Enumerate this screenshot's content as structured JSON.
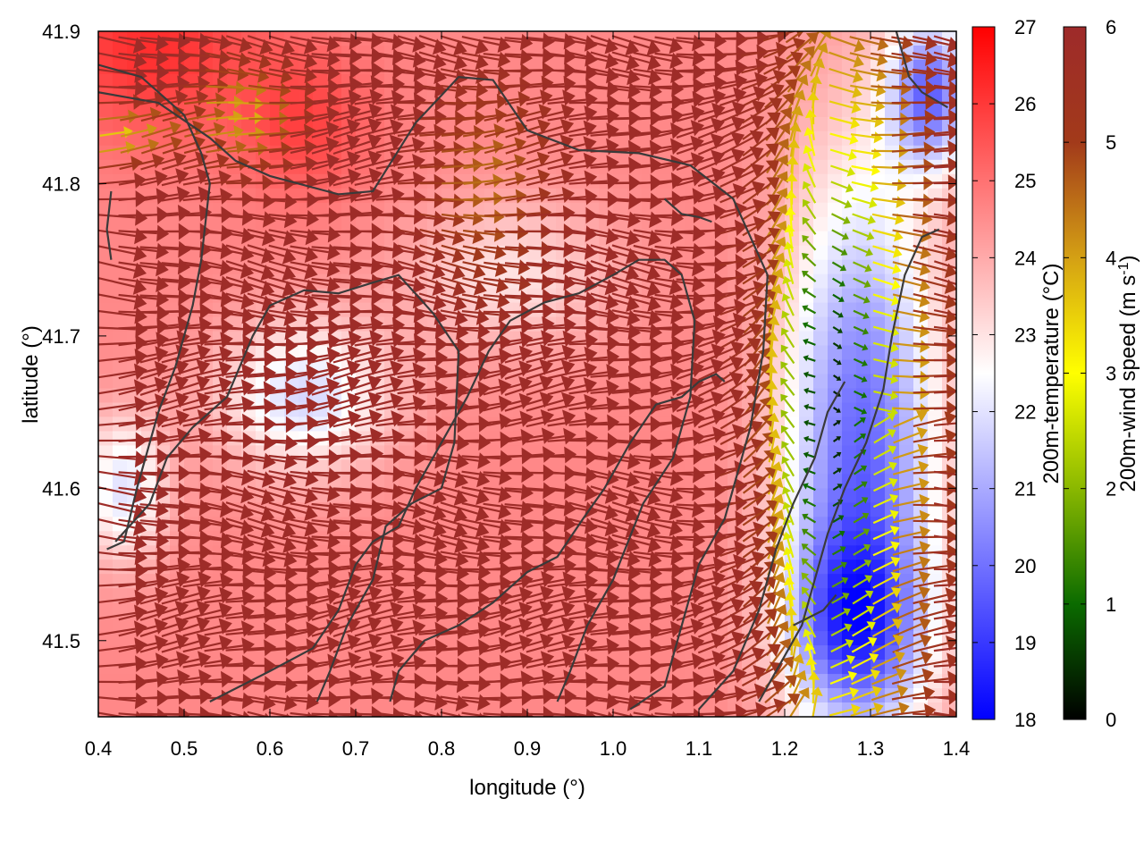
{
  "chart_data": {
    "type": "heatmap",
    "title": "",
    "xlabel": "longitude (°)",
    "ylabel": "latitude (°)",
    "xlim": [
      0.4,
      1.4
    ],
    "ylim": [
      41.45,
      41.9
    ],
    "xticks": [
      "0.4",
      "0.5",
      "0.6",
      "0.7",
      "0.8",
      "0.9",
      "1.0",
      "1.1",
      "1.2",
      "1.3",
      "1.4"
    ],
    "yticks": [
      "41.5",
      "41.6",
      "41.7",
      "41.8",
      "41.9"
    ],
    "grid": false,
    "legend": "none",
    "temperature_colorbar": {
      "label": "200m-temperature (°C)",
      "range": [
        18,
        27
      ],
      "ticks": [
        "18",
        "19",
        "20",
        "21",
        "22",
        "23",
        "24",
        "25",
        "26",
        "27"
      ],
      "colors": [
        "#0000ff",
        "#ffffff",
        "#ff0000"
      ]
    },
    "wind_colorbar": {
      "label_main": "200m-wind speed (m s",
      "label_sup": "-1",
      "label_end": ")",
      "range": [
        0,
        6
      ],
      "ticks": [
        "0",
        "1",
        "2",
        "3",
        "4",
        "5",
        "6"
      ],
      "colors": [
        "#000000",
        "#0b6b00",
        "#8ab800",
        "#ffff00",
        "#d4a014",
        "#a23a1a",
        "#9e2a2a"
      ]
    },
    "temperature_field": {
      "background_c": 24.6,
      "cool_zones": [
        {
          "lon": 1.29,
          "lat": 41.62,
          "rlon": 0.09,
          "rlat": 0.19,
          "delta_c": -4.8
        },
        {
          "lon": 1.37,
          "lat": 41.86,
          "rlon": 0.05,
          "rlat": 0.05,
          "delta_c": -4.5
        },
        {
          "lon": 1.28,
          "lat": 41.51,
          "rlon": 0.08,
          "rlat": 0.06,
          "delta_c": -3.2
        },
        {
          "lon": 0.64,
          "lat": 41.66,
          "rlon": 0.1,
          "rlat": 0.05,
          "delta_c": -2.8
        },
        {
          "lon": 0.43,
          "lat": 41.6,
          "rlon": 0.05,
          "rlat": 0.05,
          "delta_c": -2.6
        },
        {
          "lon": 0.88,
          "lat": 41.74,
          "rlon": 0.12,
          "rlat": 0.05,
          "delta_c": -1.6
        }
      ],
      "warm_zones": [
        {
          "lon": 0.46,
          "lat": 41.89,
          "rlon": 0.12,
          "rlat": 0.06,
          "delta_c": 1.6
        },
        {
          "lon": 0.64,
          "lat": 41.84,
          "rlon": 0.08,
          "rlat": 0.05,
          "delta_c": 1.2
        }
      ]
    },
    "wind_field": {
      "main_flow": {
        "speed_ms": 5.9,
        "direction": "eastward"
      },
      "calm_zones": [
        {
          "lon": 1.255,
          "lat": 41.65,
          "rlon": 0.075,
          "rlat": 0.22,
          "min_speed_ms": 0.3
        },
        {
          "lon": 0.55,
          "lat": 41.845,
          "rlon": 0.05,
          "rlat": 0.035,
          "min_speed_ms": 3.8
        },
        {
          "lon": 0.37,
          "lat": 41.83,
          "rlon": 0.1,
          "rlat": 0.018,
          "min_speed_ms": 3.2
        },
        {
          "lon": 0.83,
          "lat": 41.8,
          "rlon": 0.06,
          "rlat": 0.06,
          "min_speed_ms": 4.5
        }
      ]
    },
    "contours": [
      {
        "name": "contour-1",
        "points": [
          [
            0.4,
            41.86
          ],
          [
            0.47,
            41.853
          ],
          [
            0.53,
            41.83
          ],
          [
            0.56,
            41.815
          ],
          [
            0.6,
            41.805
          ],
          [
            0.68,
            41.793
          ],
          [
            0.72,
            41.795
          ],
          [
            0.77,
            41.84
          ],
          [
            0.82,
            41.87
          ],
          [
            0.86,
            41.868
          ],
          [
            0.9,
            41.835
          ],
          [
            0.96,
            41.822
          ],
          [
            1.03,
            41.82
          ],
          [
            1.09,
            41.812
          ],
          [
            1.14,
            41.79
          ],
          [
            1.18,
            41.74
          ],
          [
            1.175,
            41.69
          ],
          [
            1.16,
            41.64
          ],
          [
            1.13,
            41.58
          ],
          [
            1.1,
            41.55
          ],
          [
            1.06,
            41.47
          ],
          [
            1.02,
            41.455
          ]
        ]
      },
      {
        "name": "contour-2",
        "points": [
          [
            0.4,
            41.878
          ],
          [
            0.45,
            41.87
          ],
          [
            0.5,
            41.845
          ],
          [
            0.52,
            41.82
          ],
          [
            0.53,
            41.8
          ],
          [
            0.52,
            41.75
          ],
          [
            0.51,
            41.72
          ],
          [
            0.49,
            41.68
          ],
          [
            0.47,
            41.65
          ],
          [
            0.455,
            41.62
          ],
          [
            0.445,
            41.6
          ],
          [
            0.43,
            41.565
          ],
          [
            0.41,
            41.56
          ]
        ]
      },
      {
        "name": "contour-3",
        "points": [
          [
            0.415,
            41.795
          ],
          [
            0.41,
            41.77
          ],
          [
            0.415,
            41.75
          ]
        ]
      },
      {
        "name": "contour-4",
        "points": [
          [
            0.42,
            41.565
          ],
          [
            0.46,
            41.59
          ],
          [
            0.48,
            41.62
          ],
          [
            0.51,
            41.64
          ],
          [
            0.55,
            41.66
          ],
          [
            0.58,
            41.7
          ],
          [
            0.6,
            41.72
          ],
          [
            0.64,
            41.73
          ],
          [
            0.68,
            41.728
          ],
          [
            0.72,
            41.735
          ],
          [
            0.75,
            41.74
          ],
          [
            0.79,
            41.715
          ],
          [
            0.82,
            41.69
          ],
          [
            0.815,
            41.63
          ],
          [
            0.8,
            41.6
          ],
          [
            0.765,
            41.59
          ],
          [
            0.735,
            41.575
          ],
          [
            0.72,
            41.54
          ],
          [
            0.69,
            41.51
          ],
          [
            0.67,
            41.48
          ],
          [
            0.655,
            41.46
          ]
        ]
      },
      {
        "name": "contour-5",
        "points": [
          [
            0.53,
            41.46
          ],
          [
            0.6,
            41.48
          ],
          [
            0.65,
            41.495
          ],
          [
            0.68,
            41.52
          ],
          [
            0.7,
            41.55
          ],
          [
            0.72,
            41.565
          ],
          [
            0.75,
            41.575
          ],
          [
            0.77,
            41.6
          ],
          [
            0.8,
            41.63
          ],
          [
            0.83,
            41.66
          ],
          [
            0.855,
            41.69
          ],
          [
            0.88,
            41.71
          ],
          [
            0.92,
            41.722
          ],
          [
            0.96,
            41.728
          ],
          [
            1.0,
            41.74
          ],
          [
            1.03,
            41.75
          ],
          [
            1.06,
            41.75
          ],
          [
            1.08,
            41.74
          ],
          [
            1.095,
            41.71
          ],
          [
            1.09,
            41.66
          ],
          [
            1.07,
            41.62
          ],
          [
            1.035,
            41.59
          ],
          [
            1.0,
            41.54
          ],
          [
            0.97,
            41.51
          ],
          [
            0.95,
            41.48
          ],
          [
            0.935,
            41.46
          ]
        ]
      },
      {
        "name": "contour-6",
        "points": [
          [
            0.74,
            41.46
          ],
          [
            0.75,
            41.48
          ],
          [
            0.78,
            41.5
          ],
          [
            0.82,
            41.51
          ],
          [
            0.86,
            41.525
          ],
          [
            0.9,
            41.545
          ],
          [
            0.935,
            41.555
          ],
          [
            0.965,
            41.58
          ],
          [
            0.99,
            41.6
          ],
          [
            1.02,
            41.63
          ],
          [
            1.05,
            41.655
          ],
          [
            1.08,
            41.66
          ],
          [
            1.1,
            41.67
          ],
          [
            1.12,
            41.675
          ],
          [
            1.13,
            41.67
          ]
        ]
      },
      {
        "name": "contour-7",
        "points": [
          [
            1.17,
            41.46
          ],
          [
            1.2,
            41.49
          ],
          [
            1.22,
            41.51
          ],
          [
            1.235,
            41.54
          ],
          [
            1.25,
            41.57
          ],
          [
            1.27,
            41.6
          ],
          [
            1.295,
            41.63
          ],
          [
            1.315,
            41.665
          ],
          [
            1.325,
            41.7
          ],
          [
            1.34,
            41.74
          ],
          [
            1.36,
            41.765
          ],
          [
            1.38,
            41.77
          ]
        ]
      },
      {
        "name": "contour-8",
        "points": [
          [
            1.1,
            41.455
          ],
          [
            1.14,
            41.48
          ],
          [
            1.17,
            41.52
          ],
          [
            1.19,
            41.56
          ],
          [
            1.21,
            41.59
          ],
          [
            1.235,
            41.62
          ],
          [
            1.25,
            41.65
          ],
          [
            1.27,
            41.67
          ]
        ]
      },
      {
        "name": "contour-9",
        "points": [
          [
            1.33,
            41.9
          ],
          [
            1.345,
            41.87
          ],
          [
            1.36,
            41.86
          ],
          [
            1.39,
            41.85
          ]
        ]
      },
      {
        "name": "contour-10",
        "points": [
          [
            1.21,
            41.51
          ],
          [
            1.245,
            41.52
          ],
          [
            1.26,
            41.53
          ]
        ]
      },
      {
        "name": "contour-11",
        "points": [
          [
            1.06,
            41.79
          ],
          [
            1.08,
            41.78
          ],
          [
            1.1,
            41.778
          ],
          [
            1.115,
            41.775
          ]
        ]
      }
    ]
  }
}
